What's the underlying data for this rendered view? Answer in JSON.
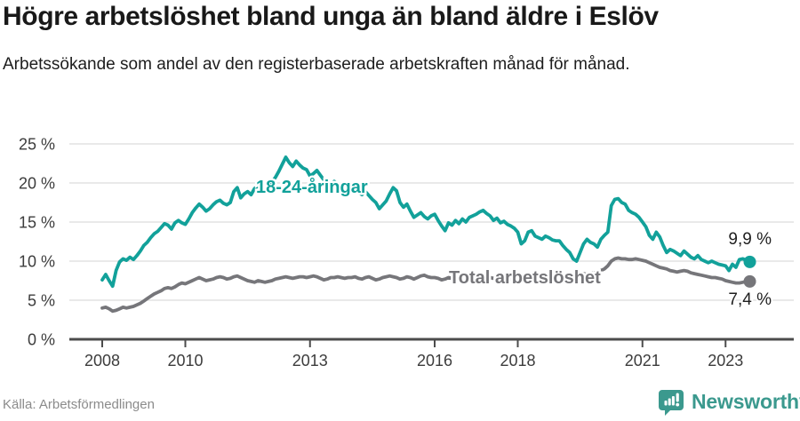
{
  "header": {
    "title": "Högre arbetslöshet bland unga än bland äldre i Eslöv",
    "subtitle": "Arbetssökande som andel av den registerbaserade arbetskraften månad för månad."
  },
  "footer": {
    "source": "Källa: Arbetsförmedlingen",
    "brand": "Newsworthy"
  },
  "colors": {
    "youth_line": "#12a19a",
    "total_line": "#76767a",
    "grid": "#dcdcdc",
    "axis": "#4c4c4c",
    "tick_label": "#3c3c3c",
    "end_label": "#1f1f1f",
    "source_text": "#8b8b8b",
    "brand_teal": "#3b998e"
  },
  "chart_data": {
    "type": "line",
    "title": "Högre arbetslöshet bland unga än bland äldre i Eslöv",
    "subtitle": "Arbetssökande som andel av den registerbaserade arbetskraften månad för månad.",
    "x_unit": "month",
    "x_start": "2008-01",
    "x_end": "2023-08",
    "ylim": [
      0,
      25
    ],
    "grid": "horizontal",
    "legend_position": "inline-labels",
    "y_ticks": [
      {
        "value": 0,
        "label": "0 %"
      },
      {
        "value": 5,
        "label": "5 %"
      },
      {
        "value": 10,
        "label": "10 %"
      },
      {
        "value": 15,
        "label": "15 %"
      },
      {
        "value": 20,
        "label": "20 %"
      },
      {
        "value": 25,
        "label": "25 %"
      }
    ],
    "x_ticks": [
      {
        "year": 2008,
        "label": "2008"
      },
      {
        "year": 2010,
        "label": "2010"
      },
      {
        "year": 2013,
        "label": "2013"
      },
      {
        "year": 2016,
        "label": "2016"
      },
      {
        "year": 2018,
        "label": "2018"
      },
      {
        "year": 2021,
        "label": "2021"
      },
      {
        "year": 2023,
        "label": "2023"
      }
    ],
    "series": [
      {
        "key": "youth",
        "name": "18-24-åringar",
        "color": "#12a19a",
        "end_value": 9.9,
        "end_label": "9,9 %",
        "values": [
          7.6,
          8.3,
          7.5,
          6.8,
          8.8,
          9.9,
          10.3,
          10.1,
          10.5,
          10.2,
          10.7,
          11.3,
          12.0,
          12.4,
          13.0,
          13.5,
          13.8,
          14.3,
          14.8,
          14.6,
          14.1,
          14.9,
          15.2,
          14.9,
          14.7,
          15.4,
          16.2,
          16.8,
          17.3,
          16.9,
          16.4,
          16.7,
          17.2,
          17.6,
          17.8,
          17.4,
          17.2,
          17.5,
          18.9,
          19.4,
          18.1,
          18.6,
          18.9,
          18.5,
          19.3,
          19.6,
          19.1,
          18.8,
          19.3,
          20.1,
          20.7,
          21.5,
          22.4,
          23.3,
          22.6,
          22.1,
          22.8,
          22.3,
          21.9,
          21.7,
          20.9,
          21.2,
          21.6,
          21.0,
          20.4,
          20.1,
          19.8,
          20.2,
          19.9,
          19.5,
          19.2,
          19.3,
          18.9,
          19.2,
          18.8,
          18.5,
          18.9,
          18.4,
          17.9,
          17.5,
          16.7,
          17.2,
          17.7,
          18.6,
          19.4,
          19.0,
          17.5,
          16.9,
          17.3,
          16.4,
          15.6,
          15.9,
          16.2,
          15.7,
          15.4,
          15.8,
          16.0,
          15.2,
          14.5,
          13.9,
          14.9,
          14.6,
          15.2,
          14.8,
          15.4,
          15.0,
          15.6,
          15.8,
          16.0,
          16.3,
          16.5,
          16.1,
          15.8,
          15.2,
          15.5,
          14.9,
          15.1,
          14.7,
          14.5,
          14.2,
          13.7,
          12.2,
          12.6,
          13.7,
          13.9,
          13.2,
          13.0,
          12.8,
          13.2,
          13.0,
          12.7,
          12.6,
          12.6,
          12.0,
          11.5,
          11.1,
          10.3,
          10.0,
          11.1,
          12.2,
          12.8,
          12.4,
          12.2,
          11.8,
          12.8,
          13.3,
          13.7,
          17.1,
          17.9,
          18.0,
          17.5,
          17.3,
          16.5,
          16.2,
          16.0,
          15.6,
          15.0,
          14.4,
          13.3,
          12.8,
          13.7,
          13.1,
          12.0,
          11.1,
          11.5,
          11.3,
          11.0,
          10.7,
          11.3,
          10.9,
          10.5,
          10.3,
          10.7,
          10.2,
          10.0,
          9.8,
          10.0,
          9.8,
          9.6,
          9.5,
          9.4,
          8.8,
          9.6,
          9.2,
          10.2,
          10.3,
          10.1,
          9.9
        ]
      },
      {
        "key": "total",
        "name": "Total arbetslöshet",
        "color": "#76767a",
        "end_value": 7.4,
        "end_label": "7,4 %",
        "values": [
          4.0,
          4.1,
          3.9,
          3.6,
          3.7,
          3.9,
          4.1,
          4.0,
          4.1,
          4.2,
          4.4,
          4.6,
          4.9,
          5.2,
          5.5,
          5.8,
          6.0,
          6.2,
          6.5,
          6.6,
          6.5,
          6.7,
          7.0,
          7.2,
          7.1,
          7.3,
          7.5,
          7.7,
          7.9,
          7.7,
          7.5,
          7.6,
          7.7,
          7.9,
          8.0,
          7.9,
          7.7,
          7.8,
          8.0,
          8.1,
          7.9,
          7.7,
          7.5,
          7.4,
          7.3,
          7.5,
          7.4,
          7.3,
          7.4,
          7.5,
          7.7,
          7.8,
          7.9,
          8.0,
          7.9,
          7.8,
          7.9,
          8.0,
          8.0,
          7.9,
          8.0,
          8.1,
          8.0,
          7.8,
          7.6,
          7.7,
          7.9,
          7.9,
          8.0,
          7.9,
          7.8,
          7.9,
          7.9,
          8.0,
          7.8,
          7.7,
          7.9,
          8.0,
          7.8,
          7.6,
          7.7,
          7.9,
          8.0,
          8.1,
          8.0,
          7.9,
          7.7,
          7.8,
          8.0,
          7.9,
          7.7,
          7.9,
          8.1,
          8.2,
          8.0,
          7.9,
          7.9,
          7.8,
          7.6,
          7.7,
          7.9,
          7.8,
          7.7,
          7.8,
          8.0,
          7.9,
          8.0,
          8.1,
          8.1,
          8.2,
          8.1,
          8.0,
          7.9,
          7.8,
          7.9,
          8.0,
          7.9,
          7.8,
          7.7,
          7.6,
          7.6,
          7.5,
          7.4,
          7.5,
          7.6,
          7.5,
          7.4,
          7.3,
          7.4,
          7.5,
          7.4,
          7.5,
          7.6,
          7.7,
          7.8,
          7.9,
          8.0,
          8.1,
          8.3,
          8.4,
          8.3,
          8.4,
          8.5,
          8.6,
          8.8,
          9.0,
          9.4,
          10.0,
          10.3,
          10.4,
          10.3,
          10.3,
          10.2,
          10.2,
          10.3,
          10.2,
          10.1,
          10.0,
          9.8,
          9.6,
          9.4,
          9.2,
          9.1,
          9.0,
          8.8,
          8.7,
          8.6,
          8.7,
          8.8,
          8.7,
          8.5,
          8.4,
          8.3,
          8.2,
          8.1,
          8.0,
          7.9,
          7.9,
          7.8,
          7.7,
          7.5,
          7.4,
          7.3,
          7.2,
          7.2,
          7.3,
          7.4,
          7.4
        ]
      }
    ]
  }
}
